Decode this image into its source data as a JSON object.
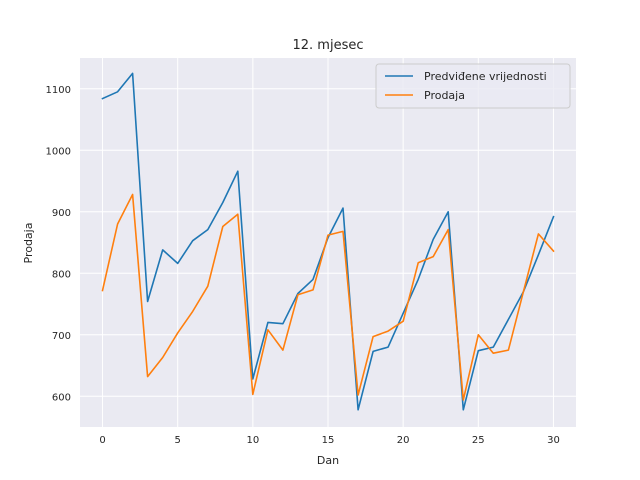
{
  "chart_data": {
    "type": "line",
    "title": "12. mjesec",
    "xlabel": "Dan",
    "ylabel": "Prodaja",
    "xlim": [
      -1.5,
      31.5
    ],
    "ylim": [
      550,
      1150
    ],
    "xticks": [
      0,
      5,
      10,
      15,
      20,
      25,
      30
    ],
    "yticks": [
      600,
      700,
      800,
      900,
      1000,
      1100
    ],
    "grid": true,
    "legend_position": "top-right",
    "x": [
      0,
      1,
      2,
      3,
      4,
      5,
      6,
      7,
      8,
      9,
      10,
      11,
      12,
      13,
      14,
      15,
      16,
      17,
      18,
      19,
      20,
      21,
      22,
      23,
      24,
      25,
      26,
      27,
      28,
      29,
      30
    ],
    "series": [
      {
        "name": "Predviđene vrijednosti",
        "color": "#1f77b4",
        "values": [
          1084,
          1095,
          1125,
          754,
          838,
          816,
          853,
          871,
          915,
          966,
          628,
          720,
          718,
          767,
          790,
          858,
          906,
          578,
          673,
          680,
          735,
          790,
          855,
          900,
          578,
          674,
          680,
          725,
          770,
          830,
          892
        ]
      },
      {
        "name": "Prodaja",
        "color": "#ff7f0e",
        "values": [
          772,
          880,
          928,
          632,
          663,
          703,
          738,
          779,
          876,
          896,
          603,
          708,
          675,
          765,
          773,
          862,
          868,
          602,
          697,
          706,
          722,
          817,
          827,
          871,
          594,
          700,
          670,
          675,
          770,
          864,
          836
        ]
      }
    ]
  }
}
